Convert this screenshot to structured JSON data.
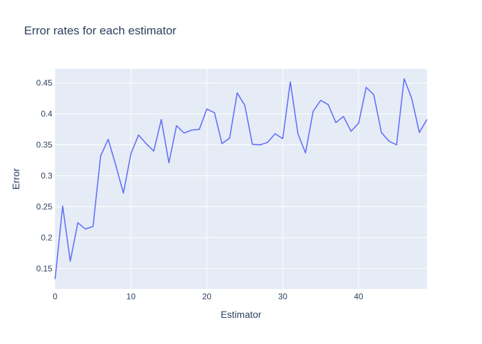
{
  "chart_data": {
    "type": "line",
    "title": "Error rates for each estimator",
    "xlabel": "Estimator",
    "ylabel": "Error",
    "xlim": [
      0,
      49
    ],
    "ylim": [
      0.117,
      0.473
    ],
    "xticks": [
      0,
      10,
      20,
      30,
      40
    ],
    "xtick_labels": [
      "0",
      "10",
      "20",
      "30",
      "40"
    ],
    "yticks": [
      0.15,
      0.2,
      0.25,
      0.3,
      0.35,
      0.4,
      0.45
    ],
    "ytick_labels": [
      "0.15",
      "0.2",
      "0.25",
      "0.3",
      "0.35",
      "0.4",
      "0.45"
    ],
    "grid": true,
    "colors": {
      "line": "#636efa",
      "plot_bg": "#e5ecf6",
      "grid": "#ffffff",
      "text": "#2a3f5f"
    },
    "series": [
      {
        "x": [
          0,
          1,
          2,
          3,
          4,
          5,
          6,
          7,
          8,
          9,
          10,
          11,
          12,
          13,
          14,
          15,
          16,
          17,
          18,
          19,
          20,
          21,
          22,
          23,
          24,
          25,
          26,
          27,
          28,
          29,
          30,
          31,
          32,
          33,
          34,
          35,
          36,
          37,
          38,
          39,
          40,
          41,
          42,
          43,
          44,
          45,
          46,
          47,
          48,
          49
        ],
        "values": [
          0.133,
          0.251,
          0.162,
          0.224,
          0.214,
          0.218,
          0.332,
          0.359,
          0.317,
          0.272,
          0.336,
          0.366,
          0.352,
          0.34,
          0.391,
          0.321,
          0.381,
          0.369,
          0.374,
          0.375,
          0.408,
          0.402,
          0.352,
          0.361,
          0.434,
          0.414,
          0.351,
          0.35,
          0.354,
          0.368,
          0.36,
          0.452,
          0.368,
          0.337,
          0.404,
          0.422,
          0.415,
          0.386,
          0.396,
          0.372,
          0.385,
          0.443,
          0.431,
          0.37,
          0.356,
          0.35,
          0.457,
          0.425,
          0.37,
          0.391
        ]
      }
    ]
  }
}
